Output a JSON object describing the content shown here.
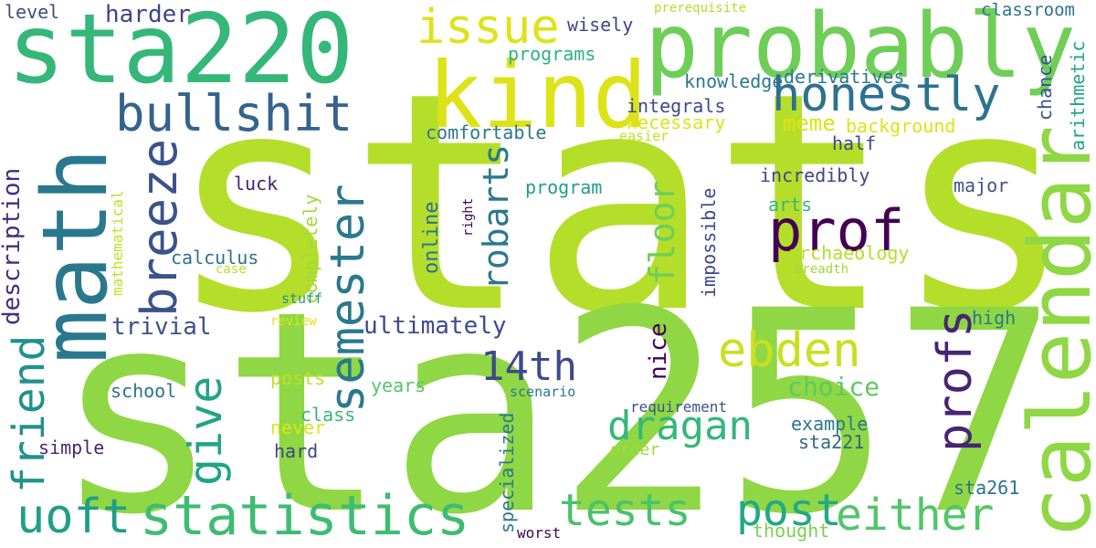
{
  "words": [
    {
      "text": "stats",
      "color": "#b5de2b",
      "rot": 0
    },
    {
      "text": "sta257",
      "color": "#8fd744",
      "rot": 0
    },
    {
      "text": "sta220",
      "color": "#35b779",
      "rot": 0
    },
    {
      "text": "probably",
      "color": "#6ece58",
      "rot": 0
    },
    {
      "text": "kind",
      "color": "#dde318",
      "rot": 0
    },
    {
      "text": "math",
      "color": "#2a788e",
      "rot": -90
    },
    {
      "text": "calendar",
      "color": "#8fd744",
      "rot": -90
    },
    {
      "text": "issue",
      "color": "#dde318",
      "rot": 0
    },
    {
      "text": "honestly",
      "color": "#2c728e",
      "rot": 0
    },
    {
      "text": "bullshit",
      "color": "#33638d",
      "rot": 0
    },
    {
      "text": "prof",
      "color": "#440154",
      "rot": 0
    },
    {
      "text": "breeze",
      "color": "#3b528b",
      "rot": -90
    },
    {
      "text": "semester",
      "color": "#2a788e",
      "rot": -90
    },
    {
      "text": "robarts",
      "color": "#2a788e",
      "rot": -90
    },
    {
      "text": "ebden",
      "color": "#c8e020",
      "rot": 0
    },
    {
      "text": "14th",
      "color": "#3e4989",
      "rot": 0
    },
    {
      "text": "dragan",
      "color": "#35b779",
      "rot": 0
    },
    {
      "text": "friend",
      "color": "#21918c",
      "rot": -90
    },
    {
      "text": "give",
      "color": "#20a486",
      "rot": -90
    },
    {
      "text": "profs",
      "color": "#482475",
      "rot": -90
    },
    {
      "text": "uoft",
      "color": "#1f9e89",
      "rot": 0
    },
    {
      "text": "statistics",
      "color": "#3fbc73",
      "rot": 0
    },
    {
      "text": "tests",
      "color": "#4ac16d",
      "rot": 0
    },
    {
      "text": "post",
      "color": "#22a884",
      "rot": 0
    },
    {
      "text": "either",
      "color": "#52c569",
      "rot": 0
    },
    {
      "text": "floor",
      "color": "#6ece58",
      "rot": -90
    },
    {
      "text": "harder",
      "color": "#414487",
      "rot": 0
    },
    {
      "text": "level",
      "color": "#3e4989",
      "rot": 0
    },
    {
      "text": "wisely",
      "color": "#404688",
      "rot": 0
    },
    {
      "text": "prerequisite",
      "color": "#b5de2b",
      "rot": 0
    },
    {
      "text": "classroom",
      "color": "#2c728e",
      "rot": 0
    },
    {
      "text": "programs",
      "color": "#2db27d",
      "rot": 0
    },
    {
      "text": "knowledge",
      "color": "#2a788e",
      "rot": 0
    },
    {
      "text": "derivatives",
      "color": "#2a788e",
      "rot": 0
    },
    {
      "text": "integrals",
      "color": "#3e4989",
      "rot": 0
    },
    {
      "text": "necessary",
      "color": "#dde318",
      "rot": 0
    },
    {
      "text": "meme",
      "color": "#dde318",
      "rot": 0
    },
    {
      "text": "background",
      "color": "#dde318",
      "rot": 0
    },
    {
      "text": "comfortable",
      "color": "#2a788e",
      "rot": 0
    },
    {
      "text": "easier",
      "color": "#c2df23",
      "rot": 0
    },
    {
      "text": "half",
      "color": "#3e4989",
      "rot": 0
    },
    {
      "text": "incredibly",
      "color": "#414487",
      "rot": 0
    },
    {
      "text": "major",
      "color": "#3b528b",
      "rot": 0
    },
    {
      "text": "chance",
      "color": "#3b528b",
      "rot": -90
    },
    {
      "text": "arithmetic",
      "color": "#20a486",
      "rot": -90
    },
    {
      "text": "description",
      "color": "#472d7b",
      "rot": -90
    },
    {
      "text": "luck",
      "color": "#481f70",
      "rot": 0
    },
    {
      "text": "program",
      "color": "#1f9e89",
      "rot": 0
    },
    {
      "text": "online",
      "color": "#2c728e",
      "rot": -90
    },
    {
      "text": "right",
      "color": "#440154",
      "rot": -90
    },
    {
      "text": "impossible",
      "color": "#3e4989",
      "rot": -90
    },
    {
      "text": "arts",
      "color": "#35b779",
      "rot": 0
    },
    {
      "text": "archaeology",
      "color": "#b5de2b",
      "rot": 0
    },
    {
      "text": "breadth",
      "color": "#a2da37",
      "rot": 0
    },
    {
      "text": "calculus",
      "color": "#2c728e",
      "rot": 0
    },
    {
      "text": "case",
      "color": "#b5de2b",
      "rot": 0
    },
    {
      "text": "mathematical",
      "color": "#c2df23",
      "rot": -90
    },
    {
      "text": "completely",
      "color": "#a2da37",
      "rot": -90
    },
    {
      "text": "stuff",
      "color": "#21918c",
      "rot": 0
    },
    {
      "text": "review",
      "color": "#dde318",
      "rot": 0
    },
    {
      "text": "trivial",
      "color": "#3b528b",
      "rot": 0
    },
    {
      "text": "ultimately",
      "color": "#3e4989",
      "rot": 0
    },
    {
      "text": "high",
      "color": "#2a788e",
      "rot": 0
    },
    {
      "text": "nice",
      "color": "#440154",
      "rot": -90
    },
    {
      "text": "choice",
      "color": "#5ec962",
      "rot": 0
    },
    {
      "text": "posts",
      "color": "#c2df23",
      "rot": 0
    },
    {
      "text": "school",
      "color": "#2c728e",
      "rot": 0
    },
    {
      "text": "years",
      "color": "#52c569",
      "rot": 0
    },
    {
      "text": "scenario",
      "color": "#2a788e",
      "rot": 0
    },
    {
      "text": "class",
      "color": "#35b779",
      "rot": 0
    },
    {
      "text": "requirement",
      "color": "#3b528b",
      "rot": 0
    },
    {
      "text": "never",
      "color": "#dde318",
      "rot": 0
    },
    {
      "text": "example",
      "color": "#2a788e",
      "rot": 0
    },
    {
      "text": "simple",
      "color": "#482475",
      "rot": 0
    },
    {
      "text": "hard",
      "color": "#404688",
      "rot": 0
    },
    {
      "text": "sta221",
      "color": "#30697e",
      "rot": 0
    },
    {
      "text": "order",
      "color": "#a2da37",
      "rot": 0
    },
    {
      "text": "specialized",
      "color": "#2a788e",
      "rot": -90
    },
    {
      "text": "sta261",
      "color": "#2c728e",
      "rot": 0
    },
    {
      "text": "worst",
      "color": "#440154",
      "rot": 0
    },
    {
      "text": "thought",
      "color": "#7ad151",
      "rot": 0
    }
  ]
}
